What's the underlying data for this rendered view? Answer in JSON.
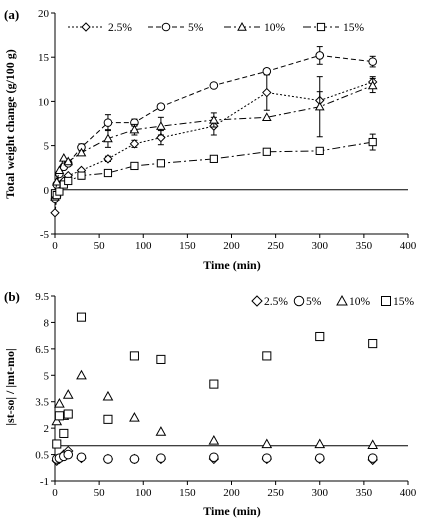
{
  "chart_data": [
    {
      "type": "line",
      "panel_label": "(a)",
      "title": "",
      "xlabel": "Time (min)",
      "ylabel": "Total weight change (g/100 g)",
      "xlim": [
        0,
        400
      ],
      "ylim": [
        -5,
        20
      ],
      "xticks": [
        0,
        50,
        100,
        150,
        200,
        250,
        300,
        350,
        400
      ],
      "yticks": [
        -5,
        0,
        5,
        10,
        15,
        20
      ],
      "reference_line_y": 0,
      "legend_position": "top",
      "series": [
        {
          "name": "2.5%",
          "marker": "diamond",
          "dash": "dotted",
          "x": [
            0,
            2,
            5,
            10,
            15,
            30,
            60,
            90,
            120,
            180,
            240,
            300,
            360
          ],
          "y": [
            -2.6,
            -0.8,
            0.5,
            1.0,
            1.6,
            2.2,
            3.5,
            5.2,
            5.9,
            7.2,
            11.0,
            10.1,
            12.2
          ],
          "err": [
            0,
            0,
            0,
            0,
            0,
            0,
            0.3,
            0.4,
            0.8,
            1.0,
            2.0,
            1.0,
            0.6
          ]
        },
        {
          "name": "5%",
          "marker": "circle",
          "dash": "dashed",
          "x": [
            0,
            2,
            5,
            10,
            15,
            30,
            60,
            90,
            120,
            180,
            240,
            300,
            360
          ],
          "y": [
            -1.0,
            0.6,
            1.8,
            2.6,
            3.0,
            4.8,
            7.6,
            7.6,
            9.4,
            11.8,
            13.4,
            15.2,
            14.5
          ],
          "err": [
            0,
            0,
            0,
            0,
            0,
            0.4,
            0.9,
            0.4,
            0.3,
            0,
            0.3,
            1.0,
            0.6
          ]
        },
        {
          "name": "10%",
          "marker": "triangle",
          "dash": "dashdot",
          "x": [
            0,
            2,
            5,
            10,
            15,
            30,
            60,
            90,
            120,
            180,
            240,
            300,
            360
          ],
          "y": [
            -0.8,
            0.9,
            2.2,
            3.6,
            3.2,
            4.2,
            5.8,
            6.8,
            7.2,
            7.9,
            8.2,
            9.4,
            11.8
          ],
          "err": [
            0,
            0,
            0,
            0,
            0,
            0,
            1.0,
            0.6,
            1.0,
            0.8,
            0,
            3.4,
            0.8
          ]
        },
        {
          "name": "15%",
          "marker": "square",
          "dash": "dashdot2",
          "x": [
            0,
            2,
            5,
            10,
            15,
            30,
            60,
            90,
            120,
            180,
            240,
            300,
            360
          ],
          "y": [
            -0.4,
            -0.6,
            -0.2,
            0.6,
            1.0,
            1.6,
            1.9,
            2.7,
            3.0,
            3.5,
            4.3,
            4.4,
            5.4
          ],
          "err": [
            0,
            0,
            0,
            0,
            0,
            0.4,
            0.3,
            0.2,
            0.2,
            0.1,
            0.2,
            0.3,
            0.9
          ]
        }
      ]
    },
    {
      "type": "scatter",
      "panel_label": "(b)",
      "title": "",
      "xlabel": "Time (min)",
      "ylabel": "|st-so| / |mt-mo|",
      "xlim": [
        0,
        400
      ],
      "ylim": [
        -1,
        9.5
      ],
      "xticks": [
        0,
        50,
        100,
        150,
        200,
        250,
        300,
        350,
        400
      ],
      "yticks": [
        -1,
        0.5,
        2,
        3.5,
        5,
        6.5,
        8,
        9.5
      ],
      "reference_line_y": 1,
      "legend_position": "top-right",
      "series": [
        {
          "name": "2.5%",
          "marker": "diamond",
          "x": [
            2,
            5,
            10,
            15,
            30,
            60,
            90,
            120,
            180,
            240,
            300,
            360
          ],
          "y": [
            0.15,
            0.25,
            0.5,
            0.7,
            0.3,
            0.25,
            0.25,
            0.25,
            0.25,
            0.25,
            0.25,
            0.2
          ]
        },
        {
          "name": "5%",
          "marker": "circle",
          "x": [
            2,
            5,
            10,
            15,
            30,
            60,
            90,
            120,
            180,
            240,
            300,
            360
          ],
          "y": [
            0.25,
            0.3,
            0.4,
            0.5,
            0.35,
            0.25,
            0.25,
            0.3,
            0.35,
            0.3,
            0.3,
            0.3
          ]
        },
        {
          "name": "10%",
          "marker": "triangle",
          "x": [
            2,
            5,
            10,
            15,
            30,
            60,
            90,
            120,
            180,
            240,
            300,
            360
          ],
          "y": [
            2.4,
            3.4,
            2.7,
            3.9,
            5.0,
            3.8,
            2.6,
            1.8,
            1.3,
            1.1,
            1.1,
            1.05
          ]
        },
        {
          "name": "15%",
          "marker": "square",
          "x": [
            2,
            5,
            10,
            15,
            30,
            60,
            90,
            120,
            180,
            240,
            300,
            360
          ],
          "y": [
            1.1,
            2.7,
            1.7,
            2.8,
            8.3,
            2.5,
            6.1,
            5.9,
            4.5,
            6.1,
            7.2,
            6.8
          ]
        }
      ]
    }
  ]
}
